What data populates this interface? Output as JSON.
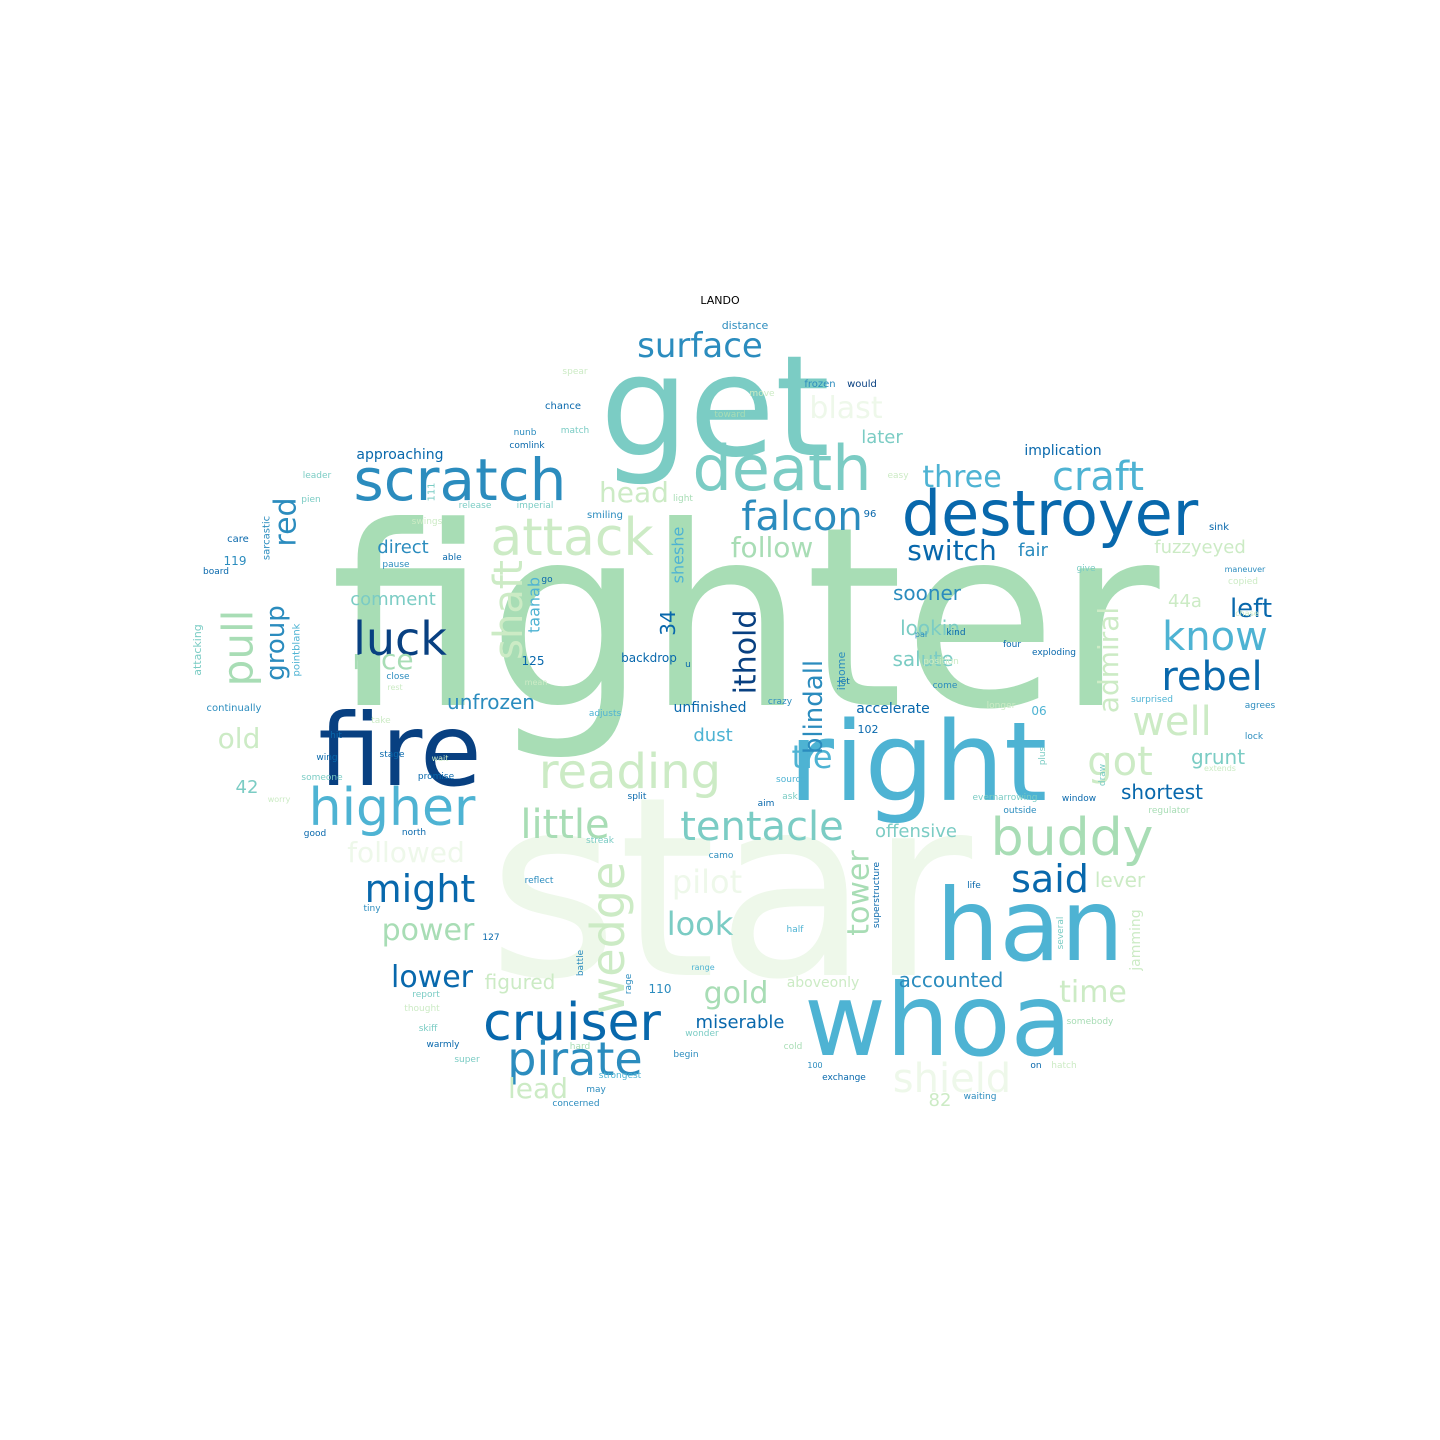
{
  "title": "LANDO",
  "palette": {
    "c1": "#eef8ea",
    "c2": "#ccebc5",
    "c3": "#a8ddb5",
    "c4": "#7bccc4",
    "c5": "#4eb3d3",
    "c6": "#2b8cbe",
    "c7": "#0868ac",
    "c8": "#084081"
  },
  "words": [
    {
      "text": "fighter",
      "color": "c3"
    },
    {
      "text": "star",
      "color": "c1"
    },
    {
      "text": "get",
      "color": "c4"
    },
    {
      "text": "right",
      "color": "c5"
    },
    {
      "text": "fire",
      "color": "c8"
    },
    {
      "text": "han",
      "color": "c5"
    },
    {
      "text": "whoa",
      "color": "c5"
    },
    {
      "text": "death",
      "color": "c4"
    },
    {
      "text": "destroyer",
      "color": "c7"
    },
    {
      "text": "scratch",
      "color": "c6"
    },
    {
      "text": "attack",
      "color": "c2"
    },
    {
      "text": "higher",
      "color": "c5"
    },
    {
      "text": "buddy",
      "color": "c3"
    },
    {
      "text": "cruiser",
      "color": "c7"
    },
    {
      "text": "pirate",
      "color": "c6"
    },
    {
      "text": "reading",
      "color": "c2"
    },
    {
      "text": "tentacle",
      "color": "c4"
    },
    {
      "text": "little",
      "color": "c3"
    },
    {
      "text": "craft",
      "color": "c5"
    },
    {
      "text": "falcon",
      "color": "c6"
    },
    {
      "text": "luck",
      "color": "c8"
    },
    {
      "text": "know",
      "color": "c5"
    },
    {
      "text": "rebel",
      "color": "c7"
    },
    {
      "text": "well",
      "color": "c2"
    },
    {
      "text": "surface",
      "color": "c6"
    },
    {
      "text": "shield",
      "color": "c1"
    },
    {
      "text": "might",
      "color": "c7"
    },
    {
      "text": "said",
      "color": "c7"
    },
    {
      "text": "pull",
      "color": "c3"
    },
    {
      "text": "got",
      "color": "c2"
    },
    {
      "text": "wedge",
      "color": "c2"
    },
    {
      "text": "shaft",
      "color": "c2"
    },
    {
      "text": "blast",
      "color": "c1"
    },
    {
      "text": "three",
      "color": "c5"
    },
    {
      "text": "switch",
      "color": "c7"
    },
    {
      "text": "follow",
      "color": "c3"
    },
    {
      "text": "look",
      "color": "c4"
    },
    {
      "text": "pilot",
      "color": "c1"
    },
    {
      "text": "tie",
      "color": "c5"
    },
    {
      "text": "lower",
      "color": "c7"
    },
    {
      "text": "power",
      "color": "c3"
    },
    {
      "text": "gold",
      "color": "c3"
    },
    {
      "text": "time",
      "color": "c2"
    },
    {
      "text": "race",
      "color": "c3"
    },
    {
      "text": "head",
      "color": "c2"
    },
    {
      "text": "red",
      "color": "c6"
    },
    {
      "text": "group",
      "color": "c6"
    },
    {
      "text": "old",
      "color": "c2"
    },
    {
      "text": "ithold",
      "color": "c8"
    },
    {
      "text": "blindall",
      "color": "c6"
    },
    {
      "text": "tower",
      "color": "c3"
    },
    {
      "text": "admiral",
      "color": "c2"
    },
    {
      "text": "left",
      "color": "c7"
    },
    {
      "text": "followed",
      "color": "c1"
    },
    {
      "text": "lead",
      "color": "c2"
    },
    {
      "text": "later",
      "color": "c4"
    },
    {
      "text": "direct",
      "color": "c6"
    },
    {
      "text": "fair",
      "color": "c6"
    },
    {
      "text": "fuzzyeyed",
      "color": "c2"
    },
    {
      "text": "sooner",
      "color": "c6"
    },
    {
      "text": "lookin",
      "color": "c4"
    },
    {
      "text": "salute",
      "color": "c4"
    },
    {
      "text": "comment",
      "color": "c4"
    },
    {
      "text": "unfrozen",
      "color": "c6"
    },
    {
      "text": "dust",
      "color": "c5"
    },
    {
      "text": "offensive",
      "color": "c4"
    },
    {
      "text": "shortest",
      "color": "c7"
    },
    {
      "text": "grunt",
      "color": "c4"
    },
    {
      "text": "accounted",
      "color": "c6"
    },
    {
      "text": "miserable",
      "color": "c7"
    },
    {
      "text": "figured",
      "color": "c2"
    },
    {
      "text": "lever",
      "color": "c2"
    },
    {
      "text": "approaching",
      "color": "c7"
    },
    {
      "text": "implication",
      "color": "c7"
    },
    {
      "text": "accelerate",
      "color": "c7"
    },
    {
      "text": "unfinished",
      "color": "c7"
    },
    {
      "text": "backdrop",
      "color": "c7"
    },
    {
      "text": "sheshe",
      "color": "c5"
    },
    {
      "text": "taanab",
      "color": "c5"
    },
    {
      "text": "44a",
      "color": "c2"
    },
    {
      "text": "34",
      "color": "c7"
    },
    {
      "text": "42",
      "color": "c4"
    },
    {
      "text": "82",
      "color": "c2"
    },
    {
      "text": "110",
      "color": "c6"
    },
    {
      "text": "125",
      "color": "c7"
    },
    {
      "text": "aboveonly",
      "color": "c2"
    },
    {
      "text": "jamming",
      "color": "c2"
    },
    {
      "text": "distance",
      "color": "c6"
    },
    {
      "text": "would",
      "color": "c8"
    },
    {
      "text": "frozen",
      "color": "c6"
    },
    {
      "text": "chance",
      "color": "c7"
    },
    {
      "text": "comlink",
      "color": "c7"
    },
    {
      "text": "nunb",
      "color": "c6"
    },
    {
      "text": "match",
      "color": "c4"
    },
    {
      "text": "spear",
      "color": "c2"
    },
    {
      "text": "move",
      "color": "c2"
    },
    {
      "text": "toward",
      "color": "c3"
    },
    {
      "text": "leader",
      "color": "c4"
    },
    {
      "text": "sarcastic",
      "color": "c6"
    },
    {
      "text": "pien",
      "color": "c4"
    },
    {
      "text": "care",
      "color": "c7"
    },
    {
      "text": "119",
      "color": "c6"
    },
    {
      "text": "board",
      "color": "c7"
    },
    {
      "text": "attacking",
      "color": "c4"
    },
    {
      "text": "pointblank",
      "color": "c5"
    },
    {
      "text": "continually",
      "color": "c6"
    },
    {
      "text": "release",
      "color": "c4"
    },
    {
      "text": "imperial",
      "color": "c4"
    },
    {
      "text": "light",
      "color": "c3"
    },
    {
      "text": "smiling",
      "color": "c6"
    },
    {
      "text": "swings",
      "color": "c2"
    },
    {
      "text": "able",
      "color": "c7"
    },
    {
      "text": "pause",
      "color": "c6"
    },
    {
      "text": "go",
      "color": "c7"
    },
    {
      "text": "96",
      "color": "c7"
    },
    {
      "text": "sink",
      "color": "c7"
    },
    {
      "text": "give",
      "color": "c4"
    },
    {
      "text": "maneuver",
      "color": "c6"
    },
    {
      "text": "copied",
      "color": "c2"
    },
    {
      "text": "chase",
      "color": "c2"
    },
    {
      "text": "easy",
      "color": "c2"
    },
    {
      "text": "close",
      "color": "c6"
    },
    {
      "text": "rest",
      "color": "c2"
    },
    {
      "text": "mean",
      "color": "c2"
    },
    {
      "text": "take",
      "color": "c2"
    },
    {
      "text": "hit",
      "color": "c7"
    },
    {
      "text": "wing",
      "color": "c7"
    },
    {
      "text": "stage",
      "color": "c7"
    },
    {
      "text": "promise",
      "color": "c7"
    },
    {
      "text": "someone",
      "color": "c4"
    },
    {
      "text": "worry",
      "color": "c2"
    },
    {
      "text": "wait",
      "color": "c2"
    },
    {
      "text": "split",
      "color": "c7"
    },
    {
      "text": "aim",
      "color": "c7"
    },
    {
      "text": "ask",
      "color": "c4"
    },
    {
      "text": "source",
      "color": "c5"
    },
    {
      "text": "crazy",
      "color": "c6"
    },
    {
      "text": "adjusts",
      "color": "c5"
    },
    {
      "text": "kind",
      "color": "c7"
    },
    {
      "text": "pal",
      "color": "c6"
    },
    {
      "text": "four",
      "color": "c7"
    },
    {
      "text": "exploding",
      "color": "c7"
    },
    {
      "text": "come",
      "color": "c6"
    },
    {
      "text": "surprised",
      "color": "c5"
    },
    {
      "text": "agrees",
      "color": "c6"
    },
    {
      "text": "lock",
      "color": "c6"
    },
    {
      "text": "extends",
      "color": "c2"
    },
    {
      "text": "regulator",
      "color": "c3"
    },
    {
      "text": "window",
      "color": "c7"
    },
    {
      "text": "outside",
      "color": "c6"
    },
    {
      "text": "evernarrowing",
      "color": "c4"
    },
    {
      "text": "longer",
      "color": "c2"
    },
    {
      "text": "plus",
      "color": "c4"
    },
    {
      "text": "draw",
      "color": "c4"
    },
    {
      "text": "north",
      "color": "c7"
    },
    {
      "text": "good",
      "color": "c7"
    },
    {
      "text": "streak",
      "color": "c4"
    },
    {
      "text": "camo",
      "color": "c6"
    },
    {
      "text": "reflect",
      "color": "c6"
    },
    {
      "text": "life",
      "color": "c7"
    },
    {
      "text": "superstructure",
      "color": "c7"
    },
    {
      "text": "several",
      "color": "c4"
    },
    {
      "text": "half",
      "color": "c5"
    },
    {
      "text": "range",
      "color": "c5"
    },
    {
      "text": "battle",
      "color": "c6"
    },
    {
      "text": "127",
      "color": "c7"
    },
    {
      "text": "tiny",
      "color": "c6"
    },
    {
      "text": "rage",
      "color": "c6"
    },
    {
      "text": "report",
      "color": "c4"
    },
    {
      "text": "thought",
      "color": "c2"
    },
    {
      "text": "skiff",
      "color": "c4"
    },
    {
      "text": "warmly",
      "color": "c7"
    },
    {
      "text": "super",
      "color": "c4"
    },
    {
      "text": "strongest",
      "color": "c5"
    },
    {
      "text": "wonder",
      "color": "c4"
    },
    {
      "text": "begin",
      "color": "c6"
    },
    {
      "text": "may",
      "color": "c6"
    },
    {
      "text": "concerned",
      "color": "c6"
    },
    {
      "text": "exchange",
      "color": "c7"
    },
    {
      "text": "waiting",
      "color": "c6"
    },
    {
      "text": "somebody",
      "color": "c3"
    },
    {
      "text": "on",
      "color": "c7"
    },
    {
      "text": "cold",
      "color": "c3"
    },
    {
      "text": "position",
      "color": "c2"
    },
    {
      "text": "let",
      "color": "c7"
    },
    {
      "text": "hatch",
      "color": "c2"
    },
    {
      "text": "100",
      "color": "c6"
    },
    {
      "text": "06",
      "color": "c5"
    },
    {
      "text": "102",
      "color": "c7"
    },
    {
      "text": "u",
      "color": "c7"
    },
    {
      "text": "ithome",
      "color": "c6"
    },
    {
      "text": "111",
      "color": "c4"
    },
    {
      "text": "hard",
      "color": "c3"
    }
  ]
}
